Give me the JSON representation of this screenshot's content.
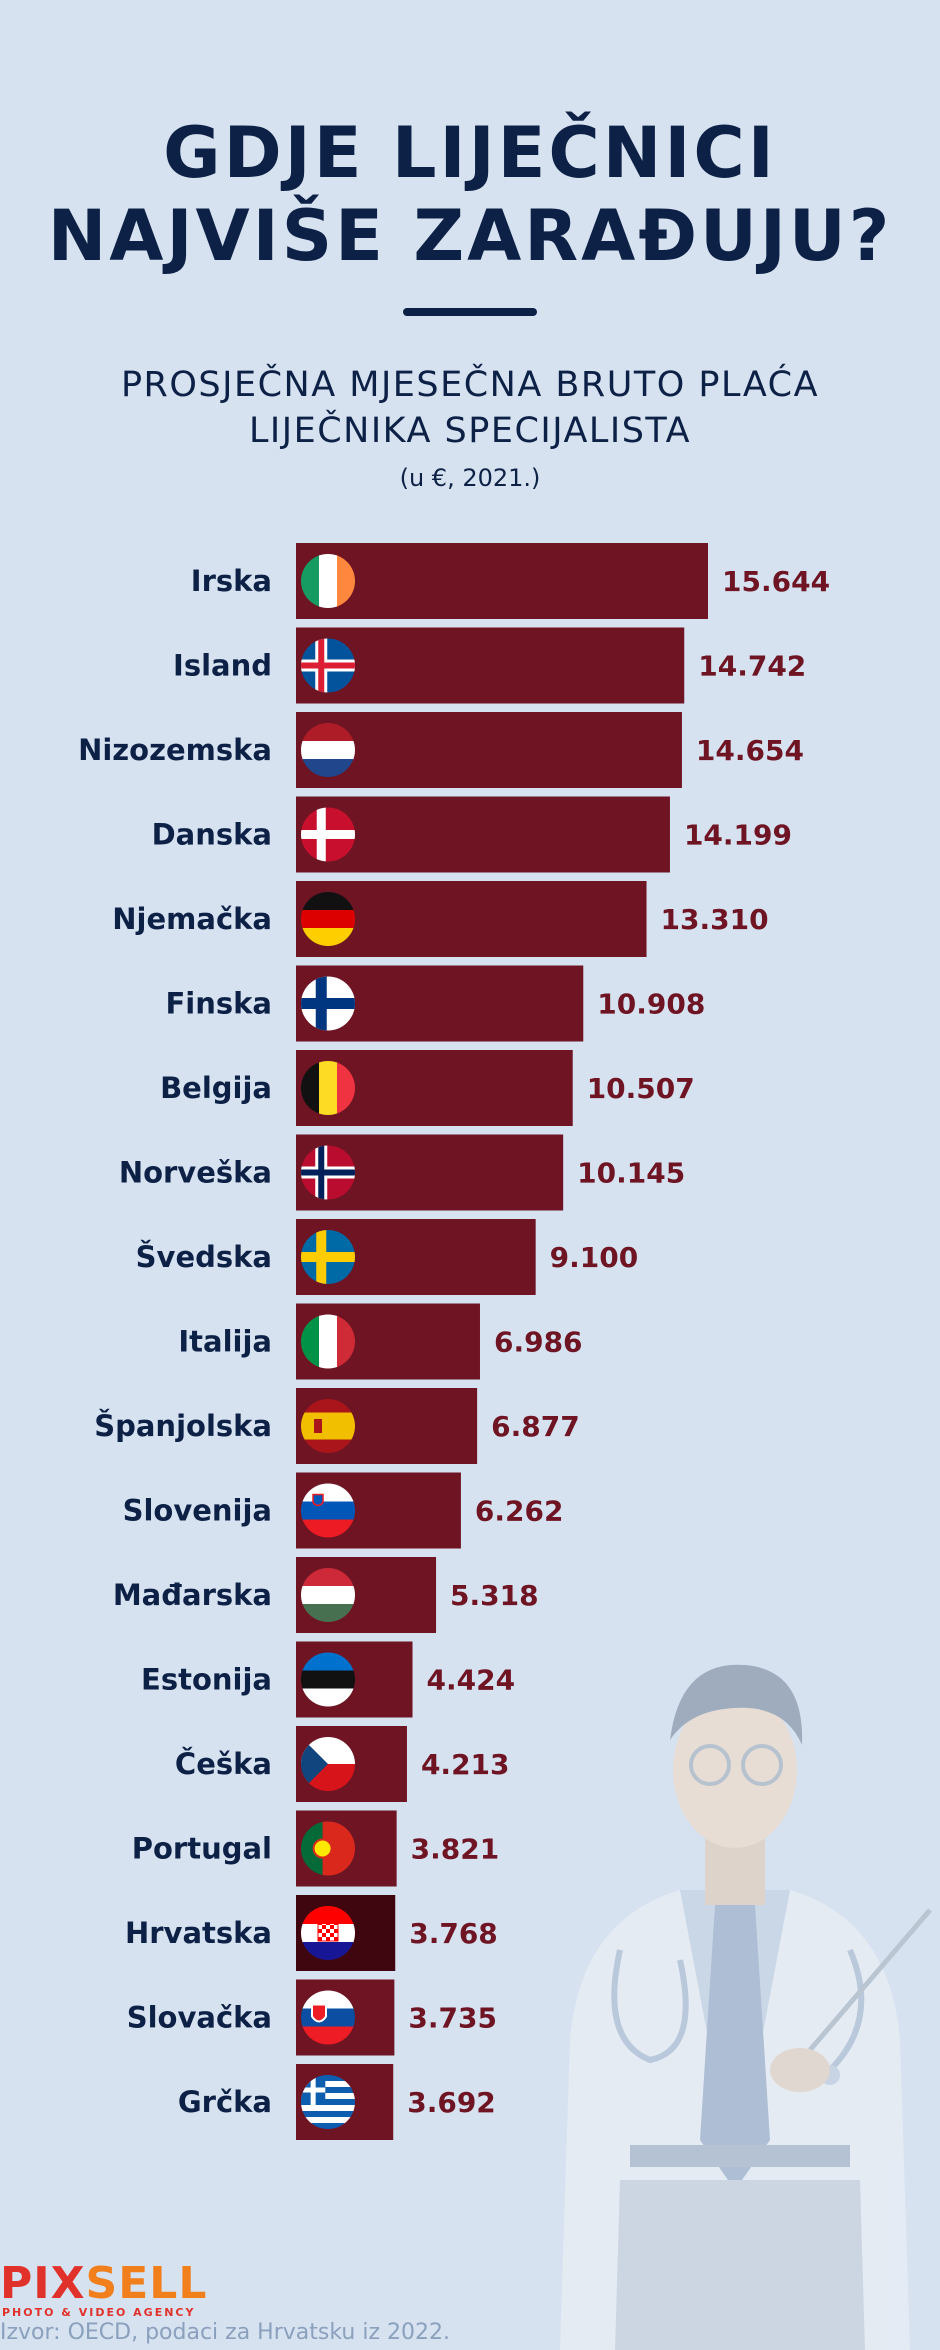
{
  "header": {
    "title_line1": "GDJE LIJEČNICI",
    "title_line2": "NAJVIŠE ZARAĐUJU?",
    "subtitle_line1": "PROSJEČNA MJESEČNA BRUTO PLAĆA",
    "subtitle_line2": "LIJEČNIKA SPECIJALISTA",
    "units": "(u €, 2021.)"
  },
  "chart_data": {
    "type": "bar",
    "orientation": "horizontal",
    "categories": [
      "Irska",
      "Island",
      "Nizozemska",
      "Danska",
      "Njemačka",
      "Finska",
      "Belgija",
      "Norveška",
      "Švedska",
      "Italija",
      "Španjolska",
      "Slovenija",
      "Mađarska",
      "Estonija",
      "Češka",
      "Portugal",
      "Hrvatska",
      "Slovačka",
      "Grčka"
    ],
    "values": [
      15644,
      14742,
      14654,
      14199,
      13310,
      10908,
      10507,
      10145,
      9100,
      6986,
      6877,
      6262,
      5318,
      4424,
      4213,
      3821,
      3768,
      3735,
      3692
    ],
    "value_labels": [
      "15.644",
      "14.742",
      "14.654",
      "14.199",
      "13.310",
      "10.908",
      "10.507",
      "10.145",
      "9.100",
      "6.986",
      "6.877",
      "6.262",
      "5.318",
      "4.424",
      "4.213",
      "3.821",
      "3.768",
      "3.735",
      "3.692"
    ],
    "flags": [
      "flag-ireland",
      "flag-iceland",
      "flag-netherlands",
      "flag-denmark",
      "flag-germany",
      "flag-finland",
      "flag-belgium",
      "flag-norway",
      "flag-sweden",
      "flag-italy",
      "flag-spain",
      "flag-slovenia",
      "flag-hungary",
      "flag-estonia",
      "flag-czechia",
      "flag-portugal",
      "flag-croatia",
      "flag-slovakia",
      "flag-greece"
    ],
    "highlight": "Hrvatska",
    "bar_color": "#6e1423",
    "highlight_color": "#3f0610",
    "xlim": [
      0,
      15644
    ],
    "grid": false,
    "legend": "none"
  },
  "footer": {
    "logo_part1": "PIX",
    "logo_part2": "SELL",
    "logo_tagline": "PHOTO & VIDEO AGENCY",
    "source": "Izvor: OECD, podaci za Hrvatsku iz 2022."
  },
  "colors": {
    "background": "#d7e2f0",
    "text": "#0d2147",
    "value_text": "#6e1423",
    "logo_red": "#e0322b",
    "logo_orange": "#f07f1c"
  }
}
